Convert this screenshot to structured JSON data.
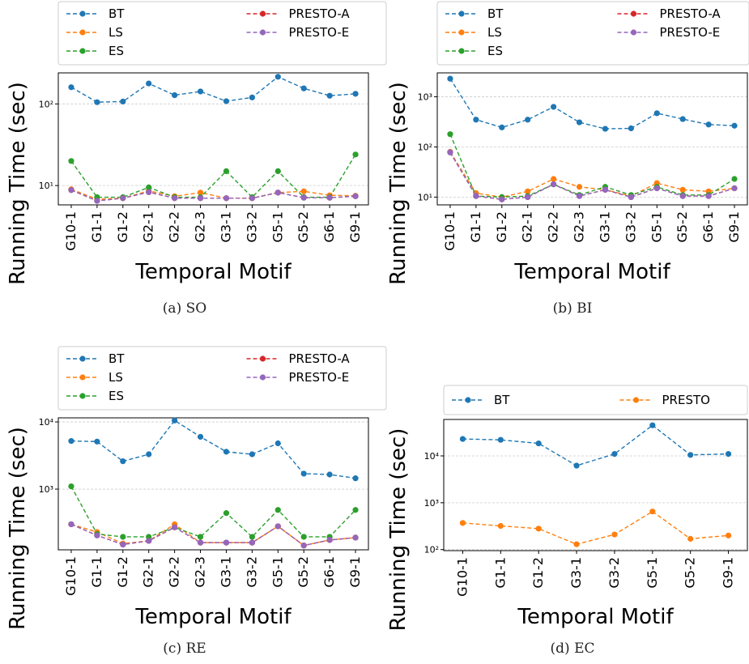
{
  "chart_data": [
    {
      "type": "line",
      "caption": "(a) SO",
      "xlabel": "Temporal Motif",
      "ylabel": "Running Time (sec)",
      "yscale": "log",
      "ylim": [
        5.8,
        240
      ],
      "grid": "y",
      "legend": "top",
      "yticks": [
        {
          "value": 10,
          "label": "10¹"
        },
        {
          "value": 100,
          "label": "10²"
        }
      ],
      "categories": [
        "G10-1",
        "G1-1",
        "G1-2",
        "G2-1",
        "G2-2",
        "G2-3",
        "G3-1",
        "G3-2",
        "G5-1",
        "G5-2",
        "G6-1",
        "G9-1"
      ],
      "series": [
        {
          "name": "BT",
          "color": "#1f77b4",
          "values": [
            160,
            105,
            107,
            178,
            128,
            142,
            108,
            120,
            215,
            155,
            126,
            133
          ]
        },
        {
          "name": "LS",
          "color": "#ff7f0e",
          "values": [
            9,
            6.8,
            7,
            8.6,
            7.4,
            8.2,
            7,
            7,
            8.2,
            8.5,
            7.6,
            7.5
          ]
        },
        {
          "name": "ES",
          "color": "#2ca02c",
          "values": [
            20,
            7.2,
            7.2,
            9.5,
            7.2,
            7.2,
            15,
            7.2,
            15,
            7.2,
            7.2,
            24
          ]
        },
        {
          "name": "PRESTO-A",
          "color": "#d62728",
          "values": [
            8.8,
            6.5,
            7,
            8.3,
            7,
            7,
            7,
            7,
            8.2,
            7.1,
            7.1,
            7.4
          ]
        },
        {
          "name": "PRESTO-E",
          "color": "#9467bd",
          "values": [
            8.8,
            6.5,
            7,
            8.3,
            7,
            7,
            7,
            7,
            8.2,
            7.1,
            7.1,
            7.4
          ]
        }
      ]
    },
    {
      "type": "line",
      "caption": "(b) BI",
      "xlabel": "Temporal Motif",
      "ylabel": "Running Time (sec)",
      "yscale": "log",
      "ylim": [
        7,
        3000
      ],
      "grid": "y",
      "legend": "top",
      "yticks": [
        {
          "value": 10,
          "label": "10¹"
        },
        {
          "value": 100,
          "label": "10²"
        },
        {
          "value": 1000,
          "label": "10³"
        }
      ],
      "categories": [
        "G10-1",
        "G1-1",
        "G1-2",
        "G2-1",
        "G2-2",
        "G2-3",
        "G3-1",
        "G3-2",
        "G5-1",
        "G5-2",
        "G6-1",
        "G9-1"
      ],
      "series": [
        {
          "name": "BT",
          "color": "#1f77b4",
          "values": [
            2300,
            350,
            245,
            350,
            630,
            310,
            230,
            235,
            470,
            360,
            280,
            265
          ]
        },
        {
          "name": "LS",
          "color": "#ff7f0e",
          "values": [
            80,
            12,
            10,
            13,
            23,
            16,
            14,
            10.5,
            19,
            14,
            13,
            15
          ]
        },
        {
          "name": "ES",
          "color": "#2ca02c",
          "values": [
            180,
            10.5,
            10,
            10.5,
            18,
            11,
            16,
            11,
            16,
            11,
            11,
            23
          ]
        },
        {
          "name": "PRESTO-A",
          "color": "#d62728",
          "values": [
            78,
            10.5,
            9,
            10,
            18,
            10.5,
            14,
            10,
            15,
            10.5,
            10.5,
            15
          ]
        },
        {
          "name": "PRESTO-E",
          "color": "#9467bd",
          "values": [
            78,
            10.5,
            9,
            10,
            18,
            10.5,
            14,
            10,
            15,
            10.5,
            10.5,
            15
          ]
        }
      ]
    },
    {
      "type": "line",
      "caption": "(c) RE",
      "xlabel": "Temporal Motif",
      "ylabel": "Running Time (sec)",
      "yscale": "log",
      "ylim": [
        125,
        11500
      ],
      "grid": "y",
      "legend": "top",
      "yticks": [
        {
          "value": 1000,
          "label": "10³"
        },
        {
          "value": 10000,
          "label": "10⁴"
        }
      ],
      "categories": [
        "G10-1",
        "G1-1",
        "G1-2",
        "G2-1",
        "G2-2",
        "G2-3",
        "G3-1",
        "G3-2",
        "G5-1",
        "G5-2",
        "G6-1",
        "G9-1"
      ],
      "series": [
        {
          "name": "BT",
          "color": "#1f77b4",
          "values": [
            5200,
            5100,
            2600,
            3300,
            10500,
            6000,
            3600,
            3300,
            4800,
            1700,
            1650,
            1450
          ]
        },
        {
          "name": "LS",
          "color": "#ff7f0e",
          "values": [
            300,
            230,
            155,
            170,
            300,
            160,
            160,
            160,
            280,
            145,
            175,
            190
          ]
        },
        {
          "name": "ES",
          "color": "#2ca02c",
          "values": [
            1100,
            215,
            195,
            195,
            270,
            195,
            440,
            195,
            490,
            195,
            195,
            490
          ]
        },
        {
          "name": "PRESTO-A",
          "color": "#d62728",
          "values": [
            300,
            205,
            150,
            170,
            270,
            160,
            160,
            160,
            280,
            145,
            175,
            190
          ]
        },
        {
          "name": "PRESTO-E",
          "color": "#9467bd",
          "values": [
            300,
            205,
            150,
            170,
            270,
            160,
            160,
            160,
            280,
            145,
            175,
            190
          ]
        }
      ]
    },
    {
      "type": "line",
      "caption": "(d) EC",
      "xlabel": "Temporal Motif",
      "ylabel": "Running Time (sec)",
      "yscale": "log",
      "ylim": [
        95,
        60000
      ],
      "grid": "y",
      "legend": "top",
      "yticks": [
        {
          "value": 100,
          "label": "10²"
        },
        {
          "value": 1000,
          "label": "10³"
        },
        {
          "value": 10000,
          "label": "10⁴"
        }
      ],
      "categories": [
        "G10-1",
        "G1-1",
        "G1-2",
        "G3-1",
        "G3-2",
        "G5-1",
        "G5-2",
        "G9-1"
      ],
      "series": [
        {
          "name": "BT",
          "color": "#1f77b4",
          "values": [
            23000,
            22000,
            18500,
            6200,
            11000,
            45000,
            10500,
            11000
          ]
        },
        {
          "name": "PRESTO",
          "color": "#ff7f0e",
          "values": [
            370,
            320,
            280,
            130,
            210,
            650,
            170,
            200
          ]
        }
      ]
    }
  ]
}
